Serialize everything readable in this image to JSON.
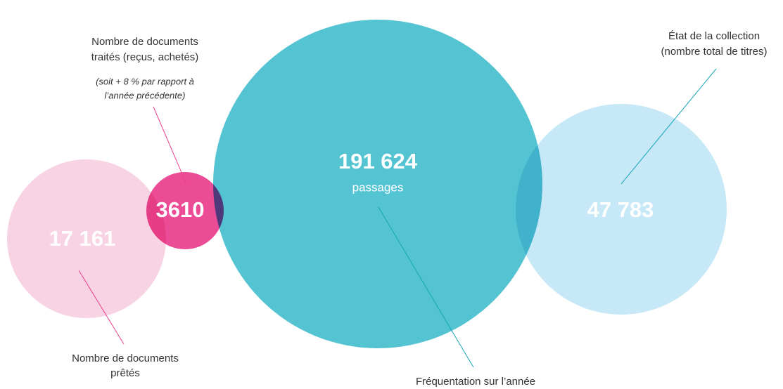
{
  "nodes": [
    {
      "value": "17 161",
      "label": [
        "Nombre de documents",
        "prêtés"
      ]
    },
    {
      "value": "3610",
      "label": [
        "Nombre de documents",
        "traités (reçus, achetés)"
      ],
      "note": [
        "(soit + 8 % par rapport à",
        "l’année précédente)"
      ]
    },
    {
      "value": "191 624",
      "unit": "passages",
      "label": [
        "Fréquentation sur l’année"
      ]
    },
    {
      "value": "47 783",
      "label": [
        "État de la collection",
        "(nombre total de titres)"
      ]
    }
  ]
}
